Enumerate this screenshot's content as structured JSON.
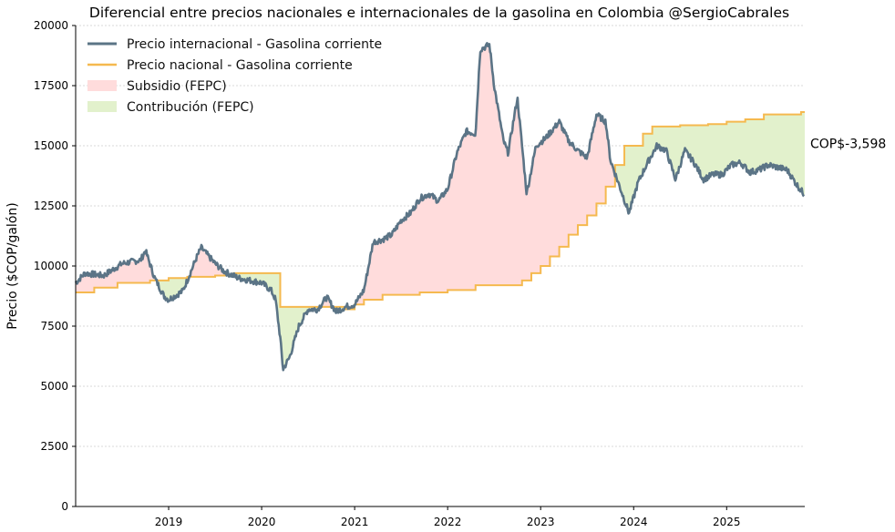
{
  "chart_data": {
    "type": "line",
    "title": "Diferencial entre precios nacionales e internacionales de la gasolina en Colombia @SergioCabrales",
    "xlabel": "",
    "ylabel": "Precio ($COP/galón)",
    "xlim": [
      2018.0,
      2025.84
    ],
    "ylim": [
      0,
      20000
    ],
    "yticks": [
      0,
      2500,
      5000,
      7500,
      10000,
      12500,
      15000,
      17500,
      20000
    ],
    "xticks": [
      "2019",
      "2020",
      "2021",
      "2022",
      "2023",
      "2024",
      "2025"
    ],
    "grid": "horizontal dotted",
    "legend_position": "top-left",
    "annotation": {
      "text": "COP$-3,598",
      "y": 15100
    },
    "series": [
      {
        "name": "Precio internacional - Gasolina corriente",
        "color": "#5b7486",
        "x": [
          2018.0,
          2018.1,
          2018.3,
          2018.5,
          2018.7,
          2018.75,
          2018.85,
          2018.95,
          2019.0,
          2019.15,
          2019.2,
          2019.3,
          2019.35,
          2019.5,
          2019.6,
          2019.75,
          2020.0,
          2020.1,
          2020.15,
          2020.2,
          2020.23,
          2020.3,
          2020.4,
          2020.5,
          2020.6,
          2020.7,
          2020.8,
          2020.9,
          2021.0,
          2021.1,
          2021.2,
          2021.3,
          2021.4,
          2021.5,
          2021.6,
          2021.7,
          2021.8,
          2021.9,
          2022.0,
          2022.1,
          2022.2,
          2022.3,
          2022.35,
          2022.45,
          2022.5,
          2022.6,
          2022.65,
          2022.75,
          2022.85,
          2022.95,
          2023.05,
          2023.2,
          2023.3,
          2023.4,
          2023.5,
          2023.6,
          2023.7,
          2023.75,
          2023.85,
          2023.95,
          2024.05,
          2024.15,
          2024.25,
          2024.35,
          2024.45,
          2024.55,
          2024.65,
          2024.75,
          2024.85,
          2024.95,
          2025.05,
          2025.15,
          2025.25,
          2025.35,
          2025.45,
          2025.55,
          2025.65,
          2025.75,
          2025.84
        ],
        "y": [
          9300,
          9700,
          9600,
          10100,
          10250,
          10650,
          9500,
          8750,
          8600,
          8950,
          9400,
          10350,
          10760,
          10100,
          9770,
          9500,
          9300,
          9000,
          8600,
          7000,
          5700,
          6200,
          7500,
          8200,
          8200,
          8700,
          8100,
          8300,
          8400,
          9000,
          11000,
          11100,
          11300,
          11900,
          12200,
          12800,
          13000,
          12700,
          13200,
          14700,
          15600,
          15500,
          19000,
          19200,
          17500,
          15200,
          14700,
          17000,
          13000,
          15000,
          15300,
          16000,
          15200,
          14800,
          14500,
          16300,
          16000,
          14400,
          13300,
          12200,
          13500,
          14300,
          15000,
          14800,
          13600,
          14800,
          14300,
          13600,
          13800,
          13800,
          14200,
          14300,
          13900,
          14000,
          14200,
          14100,
          14000,
          13400,
          12950
        ]
      },
      {
        "name": "Precio nacional - Gasolina corriente",
        "color": "#f5b94f",
        "step": "post",
        "x": [
          2018.0,
          2018.2,
          2018.45,
          2018.8,
          2019.0,
          2019.2,
          2019.5,
          2019.7,
          2020.2,
          2020.9,
          2021.0,
          2021.1,
          2021.3,
          2021.7,
          2022.0,
          2022.3,
          2022.8,
          2022.9,
          2023.0,
          2023.1,
          2023.2,
          2023.3,
          2023.4,
          2023.5,
          2023.6,
          2023.7,
          2023.8,
          2023.9,
          2024.1,
          2024.2,
          2024.5,
          2024.8,
          2025.0,
          2025.2,
          2025.4,
          2025.8
        ],
        "y": [
          8900,
          9100,
          9300,
          9400,
          9500,
          9550,
          9600,
          9700,
          8300,
          8200,
          8400,
          8600,
          8800,
          8900,
          9000,
          9200,
          9400,
          9700,
          10000,
          10400,
          10800,
          11300,
          11700,
          12100,
          12600,
          13300,
          14200,
          15000,
          15500,
          15800,
          15850,
          15900,
          16000,
          16100,
          16300,
          16400
        ]
      }
    ],
    "fills": [
      {
        "name": "Subsidio (FEPC)",
        "color": "#ffdcdc",
        "where": "internacional > nacional"
      },
      {
        "name": "Contribución (FEPC)",
        "color": "#e2f1cc",
        "where": "nacional > internacional"
      }
    ]
  }
}
